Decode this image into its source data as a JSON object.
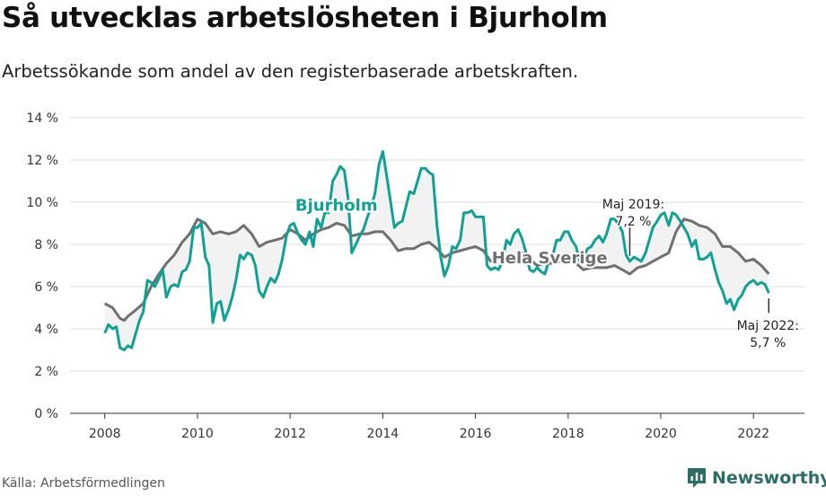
{
  "header": {
    "title": "Så utvecklas arbetslösheten i Bjurholm",
    "subtitle": "Arbetssökande som andel av den registerbaserade arbetskraften."
  },
  "footer": {
    "source": "Källa: Arbetsförmedlingen",
    "brand": "Newsworthy"
  },
  "colors": {
    "bjurholm": "#0fa195",
    "sverige": "#707070",
    "grid": "#dddddd",
    "fill": "#f2f2f2"
  },
  "chart_data": {
    "type": "line",
    "title": "Så utvecklas arbetslösheten i Bjurholm",
    "subtitle": "Arbetssökande som andel av den registerbaserade arbetskraften.",
    "xlabel": "",
    "ylabel": "",
    "xlim": [
      2007.25,
      2023.1
    ],
    "ylim": [
      0,
      14
    ],
    "x_ticks": [
      2008,
      2010,
      2012,
      2014,
      2016,
      2018,
      2020,
      2022
    ],
    "x_tick_labels": [
      "2008",
      "2010",
      "2012",
      "2014",
      "2016",
      "2018",
      "2020",
      "2022"
    ],
    "y_ticks": [
      0,
      2,
      4,
      6,
      8,
      10,
      12,
      14
    ],
    "y_tick_labels": [
      "0 %",
      "2 %",
      "4 %",
      "6 %",
      "8 %",
      "10 %",
      "12 %",
      "14 %"
    ],
    "grid": true,
    "series": [
      {
        "name": "Bjurholm",
        "points": [
          [
            2008.0,
            3.8
          ],
          [
            2008.08,
            4.2
          ],
          [
            2008.17,
            4.0
          ],
          [
            2008.25,
            4.1
          ],
          [
            2008.33,
            3.1
          ],
          [
            2008.42,
            3.0
          ],
          [
            2008.5,
            3.2
          ],
          [
            2008.58,
            3.1
          ],
          [
            2008.67,
            3.8
          ],
          [
            2008.75,
            4.4
          ],
          [
            2008.83,
            4.8
          ],
          [
            2008.92,
            6.3
          ],
          [
            2009.0,
            6.2
          ],
          [
            2009.08,
            6.0
          ],
          [
            2009.17,
            6.4
          ],
          [
            2009.25,
            6.8
          ],
          [
            2009.33,
            5.5
          ],
          [
            2009.42,
            6.0
          ],
          [
            2009.5,
            6.1
          ],
          [
            2009.58,
            6.0
          ],
          [
            2009.67,
            6.7
          ],
          [
            2009.75,
            6.8
          ],
          [
            2009.83,
            7.2
          ],
          [
            2009.92,
            8.8
          ],
          [
            2010.0,
            8.8
          ],
          [
            2010.08,
            9.0
          ],
          [
            2010.17,
            7.4
          ],
          [
            2010.25,
            7.0
          ],
          [
            2010.33,
            4.3
          ],
          [
            2010.42,
            5.2
          ],
          [
            2010.5,
            5.3
          ],
          [
            2010.58,
            4.4
          ],
          [
            2010.67,
            4.9
          ],
          [
            2010.75,
            5.5
          ],
          [
            2010.83,
            6.3
          ],
          [
            2010.92,
            7.5
          ],
          [
            2011.0,
            7.3
          ],
          [
            2011.08,
            7.6
          ],
          [
            2011.17,
            7.5
          ],
          [
            2011.25,
            7.0
          ],
          [
            2011.33,
            5.8
          ],
          [
            2011.42,
            5.5
          ],
          [
            2011.5,
            6.0
          ],
          [
            2011.58,
            6.4
          ],
          [
            2011.67,
            6.2
          ],
          [
            2011.75,
            6.6
          ],
          [
            2011.83,
            7.3
          ],
          [
            2011.92,
            8.4
          ],
          [
            2012.0,
            8.9
          ],
          [
            2012.08,
            9.0
          ],
          [
            2012.17,
            8.5
          ],
          [
            2012.25,
            8.2
          ],
          [
            2012.33,
            8.0
          ],
          [
            2012.42,
            8.6
          ],
          [
            2012.5,
            7.9
          ],
          [
            2012.58,
            9.2
          ],
          [
            2012.67,
            8.8
          ],
          [
            2012.75,
            9.5
          ],
          [
            2012.83,
            9.5
          ],
          [
            2012.92,
            11.0
          ],
          [
            2013.0,
            11.3
          ],
          [
            2013.08,
            11.7
          ],
          [
            2013.17,
            11.5
          ],
          [
            2013.25,
            10.2
          ],
          [
            2013.33,
            7.6
          ],
          [
            2013.42,
            8.0
          ],
          [
            2013.5,
            8.4
          ],
          [
            2013.58,
            8.7
          ],
          [
            2013.67,
            9.3
          ],
          [
            2013.75,
            9.8
          ],
          [
            2013.83,
            10.4
          ],
          [
            2013.92,
            11.8
          ],
          [
            2014.0,
            12.4
          ],
          [
            2014.08,
            11.3
          ],
          [
            2014.17,
            10.0
          ],
          [
            2014.25,
            8.8
          ],
          [
            2014.33,
            9.0
          ],
          [
            2014.42,
            9.1
          ],
          [
            2014.5,
            9.8
          ],
          [
            2014.58,
            10.5
          ],
          [
            2014.67,
            10.4
          ],
          [
            2014.75,
            11.0
          ],
          [
            2014.83,
            11.6
          ],
          [
            2014.92,
            11.6
          ],
          [
            2015.0,
            11.4
          ],
          [
            2015.08,
            11.3
          ],
          [
            2015.17,
            8.9
          ],
          [
            2015.25,
            7.4
          ],
          [
            2015.33,
            6.5
          ],
          [
            2015.42,
            7.0
          ],
          [
            2015.5,
            7.9
          ],
          [
            2015.58,
            7.8
          ],
          [
            2015.67,
            8.2
          ],
          [
            2015.75,
            9.5
          ],
          [
            2015.83,
            9.5
          ],
          [
            2015.92,
            9.6
          ],
          [
            2016.0,
            9.3
          ],
          [
            2016.08,
            9.3
          ],
          [
            2016.17,
            9.3
          ],
          [
            2016.25,
            7.0
          ],
          [
            2016.33,
            6.8
          ],
          [
            2016.42,
            6.9
          ],
          [
            2016.5,
            6.8
          ],
          [
            2016.58,
            7.2
          ],
          [
            2016.67,
            8.2
          ],
          [
            2016.75,
            8.0
          ],
          [
            2016.83,
            8.5
          ],
          [
            2016.92,
            8.7
          ],
          [
            2017.0,
            8.3
          ],
          [
            2017.08,
            7.7
          ],
          [
            2017.17,
            6.8
          ],
          [
            2017.25,
            6.7
          ],
          [
            2017.33,
            6.9
          ],
          [
            2017.42,
            6.7
          ],
          [
            2017.5,
            6.6
          ],
          [
            2017.58,
            7.2
          ],
          [
            2017.67,
            7.5
          ],
          [
            2017.75,
            8.2
          ],
          [
            2017.83,
            8.2
          ],
          [
            2017.92,
            8.6
          ],
          [
            2018.0,
            8.6
          ],
          [
            2018.08,
            8.2
          ],
          [
            2018.17,
            7.9
          ],
          [
            2018.25,
            7.2
          ],
          [
            2018.33,
            7.4
          ],
          [
            2018.42,
            7.8
          ],
          [
            2018.5,
            7.9
          ],
          [
            2018.58,
            8.2
          ],
          [
            2018.67,
            8.4
          ],
          [
            2018.75,
            8.1
          ],
          [
            2018.83,
            8.5
          ],
          [
            2018.92,
            9.2
          ],
          [
            2019.0,
            9.2
          ],
          [
            2019.08,
            9.0
          ],
          [
            2019.17,
            8.6
          ],
          [
            2019.25,
            7.5
          ],
          [
            2019.33,
            7.2
          ],
          [
            2019.42,
            7.4
          ],
          [
            2019.5,
            7.3
          ],
          [
            2019.58,
            7.2
          ],
          [
            2019.67,
            7.6
          ],
          [
            2019.75,
            8.2
          ],
          [
            2019.83,
            8.8
          ],
          [
            2019.92,
            9.1
          ],
          [
            2020.0,
            9.4
          ],
          [
            2020.08,
            9.5
          ],
          [
            2020.17,
            8.9
          ],
          [
            2020.25,
            9.5
          ],
          [
            2020.33,
            9.4
          ],
          [
            2020.42,
            9.1
          ],
          [
            2020.5,
            8.8
          ],
          [
            2020.58,
            8.5
          ],
          [
            2020.67,
            7.9
          ],
          [
            2020.75,
            8.2
          ],
          [
            2020.83,
            7.3
          ],
          [
            2020.92,
            7.3
          ],
          [
            2021.0,
            7.4
          ],
          [
            2021.08,
            7.6
          ],
          [
            2021.17,
            6.8
          ],
          [
            2021.25,
            6.2
          ],
          [
            2021.33,
            5.8
          ],
          [
            2021.42,
            5.2
          ],
          [
            2021.5,
            5.4
          ],
          [
            2021.58,
            4.9
          ],
          [
            2021.67,
            5.4
          ],
          [
            2021.75,
            5.6
          ],
          [
            2021.83,
            6.0
          ],
          [
            2021.92,
            6.2
          ],
          [
            2022.0,
            6.3
          ],
          [
            2022.08,
            6.1
          ],
          [
            2022.17,
            6.2
          ],
          [
            2022.25,
            6.1
          ],
          [
            2022.33,
            5.7
          ]
        ]
      },
      {
        "name": "Hela Sverige",
        "points": [
          [
            2008.0,
            5.2
          ],
          [
            2008.17,
            5.0
          ],
          [
            2008.33,
            4.5
          ],
          [
            2008.42,
            4.4
          ],
          [
            2008.5,
            4.6
          ],
          [
            2008.67,
            4.9
          ],
          [
            2008.83,
            5.2
          ],
          [
            2009.0,
            6.0
          ],
          [
            2009.17,
            6.6
          ],
          [
            2009.33,
            7.1
          ],
          [
            2009.5,
            7.5
          ],
          [
            2009.67,
            8.1
          ],
          [
            2009.83,
            8.5
          ],
          [
            2010.0,
            9.2
          ],
          [
            2010.17,
            9.0
          ],
          [
            2010.33,
            8.5
          ],
          [
            2010.5,
            8.6
          ],
          [
            2010.67,
            8.5
          ],
          [
            2010.83,
            8.6
          ],
          [
            2011.0,
            8.9
          ],
          [
            2011.17,
            8.5
          ],
          [
            2011.33,
            7.9
          ],
          [
            2011.5,
            8.1
          ],
          [
            2011.67,
            8.2
          ],
          [
            2011.83,
            8.3
          ],
          [
            2012.0,
            8.7
          ],
          [
            2012.17,
            8.5
          ],
          [
            2012.33,
            8.2
          ],
          [
            2012.5,
            8.5
          ],
          [
            2012.67,
            8.7
          ],
          [
            2012.83,
            8.8
          ],
          [
            2013.0,
            9.0
          ],
          [
            2013.17,
            8.9
          ],
          [
            2013.33,
            8.4
          ],
          [
            2013.5,
            8.5
          ],
          [
            2013.67,
            8.5
          ],
          [
            2013.83,
            8.6
          ],
          [
            2014.0,
            8.6
          ],
          [
            2014.17,
            8.2
          ],
          [
            2014.33,
            7.7
          ],
          [
            2014.5,
            7.8
          ],
          [
            2014.67,
            7.8
          ],
          [
            2014.83,
            8.0
          ],
          [
            2015.0,
            8.1
          ],
          [
            2015.17,
            7.8
          ],
          [
            2015.33,
            7.4
          ],
          [
            2015.5,
            7.6
          ],
          [
            2015.67,
            7.7
          ],
          [
            2015.83,
            7.8
          ],
          [
            2016.0,
            7.9
          ],
          [
            2016.17,
            7.7
          ],
          [
            2016.33,
            7.2
          ],
          [
            2016.5,
            7.3
          ],
          [
            2016.67,
            7.4
          ],
          [
            2016.83,
            7.4
          ],
          [
            2017.0,
            7.6
          ],
          [
            2017.17,
            7.3
          ],
          [
            2017.33,
            7.0
          ],
          [
            2017.5,
            7.1
          ],
          [
            2017.67,
            7.1
          ],
          [
            2017.83,
            7.2
          ],
          [
            2018.0,
            7.3
          ],
          [
            2018.17,
            7.1
          ],
          [
            2018.33,
            6.8
          ],
          [
            2018.5,
            6.9
          ],
          [
            2018.67,
            6.9
          ],
          [
            2018.83,
            6.9
          ],
          [
            2019.0,
            7.0
          ],
          [
            2019.17,
            6.8
          ],
          [
            2019.33,
            6.6
          ],
          [
            2019.5,
            6.9
          ],
          [
            2019.67,
            7.0
          ],
          [
            2019.83,
            7.2
          ],
          [
            2020.0,
            7.4
          ],
          [
            2020.17,
            7.6
          ],
          [
            2020.33,
            8.6
          ],
          [
            2020.5,
            9.2
          ],
          [
            2020.67,
            9.1
          ],
          [
            2020.83,
            8.9
          ],
          [
            2021.0,
            8.8
          ],
          [
            2021.17,
            8.5
          ],
          [
            2021.33,
            7.9
          ],
          [
            2021.5,
            7.9
          ],
          [
            2021.67,
            7.6
          ],
          [
            2021.83,
            7.2
          ],
          [
            2022.0,
            7.3
          ],
          [
            2022.17,
            7.0
          ],
          [
            2022.33,
            6.6
          ]
        ]
      }
    ],
    "annotations": [
      {
        "id": "maj2019",
        "x": 2019.33,
        "y": 7.2,
        "lines": [
          "Maj 2019:",
          "7,2 %"
        ]
      },
      {
        "id": "maj2022",
        "x": 2022.33,
        "y": 5.7,
        "lines": [
          "Maj 2022:",
          "5,7 %"
        ]
      }
    ],
    "series_labels": [
      "Bjurholm",
      "Hela Sverige"
    ]
  }
}
